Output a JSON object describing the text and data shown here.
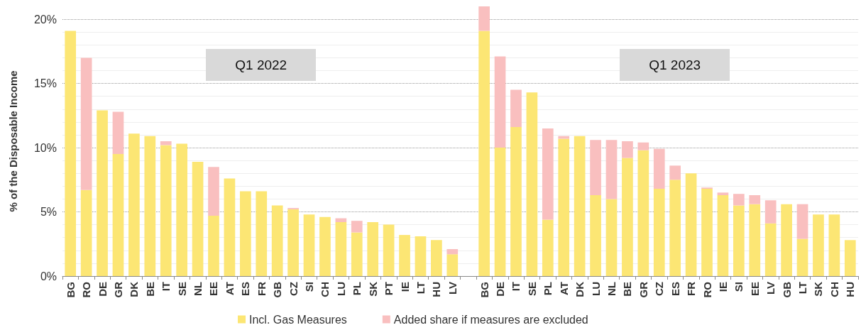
{
  "chart_data": {
    "type": "bar",
    "stacked": true,
    "ylabel": "% of the Disposable Income",
    "categories": [
      "BG",
      "RO",
      "DE",
      "GR",
      "DK",
      "BE",
      "IT",
      "SE",
      "NL",
      "EE",
      "AT",
      "ES",
      "FR",
      "GB",
      "CZ",
      "SI",
      "CH",
      "LU",
      "PL",
      "SK",
      "PT",
      "IE",
      "LT",
      "HU",
      "LV",
      null,
      "BG",
      "DE",
      "IT",
      "SE",
      "PL",
      "AT",
      "DK",
      "LU",
      "NL",
      "BE",
      "GR",
      "CZ",
      "ES",
      "FR",
      "RO",
      "IE",
      "SI",
      "EE",
      "LV",
      "GB",
      "LT",
      "SK",
      "CH",
      "HU"
    ],
    "series": [
      {
        "name": "Incl. Gas Measures",
        "color": "#fce674",
        "values": [
          19.1,
          6.7,
          12.9,
          9.5,
          11.1,
          10.9,
          10.2,
          10.3,
          8.9,
          4.7,
          7.6,
          6.6,
          6.6,
          5.5,
          5.2,
          4.8,
          4.6,
          4.2,
          3.4,
          4.2,
          4.0,
          3.2,
          3.1,
          2.8,
          1.7,
          null,
          19.1,
          10.0,
          11.6,
          14.3,
          4.4,
          10.7,
          10.9,
          6.3,
          6.0,
          9.2,
          9.8,
          6.8,
          7.5,
          8.0,
          6.8,
          6.3,
          5.5,
          5.6,
          4.1,
          5.6,
          2.9,
          4.8,
          4.8,
          2.8
        ]
      },
      {
        "name": "Added share if measures are excluded",
        "color": "#f9bfbf",
        "values": [
          null,
          10.3,
          null,
          3.3,
          null,
          null,
          0.3,
          null,
          null,
          3.8,
          null,
          null,
          null,
          null,
          0.1,
          null,
          null,
          0.3,
          0.9,
          null,
          null,
          null,
          null,
          null,
          0.4,
          null,
          1.9,
          7.1,
          2.9,
          null,
          7.1,
          0.2,
          null,
          4.3,
          4.6,
          1.3,
          0.6,
          3.1,
          1.1,
          null,
          0.1,
          0.2,
          0.9,
          0.7,
          1.8,
          null,
          2.7,
          null,
          null,
          null
        ]
      }
    ],
    "ylim": [
      0,
      21
    ],
    "yticks": [
      {
        "value": 0,
        "label": "0%"
      },
      {
        "value": 5,
        "label": "5%"
      },
      {
        "value": 10,
        "label": "10%"
      },
      {
        "value": 15,
        "label": "15%"
      },
      {
        "value": 20,
        "label": "20%"
      }
    ],
    "grid": "y",
    "legend": "bottom",
    "annotations": [
      "Q1 2022",
      "Q1 2023"
    ]
  }
}
